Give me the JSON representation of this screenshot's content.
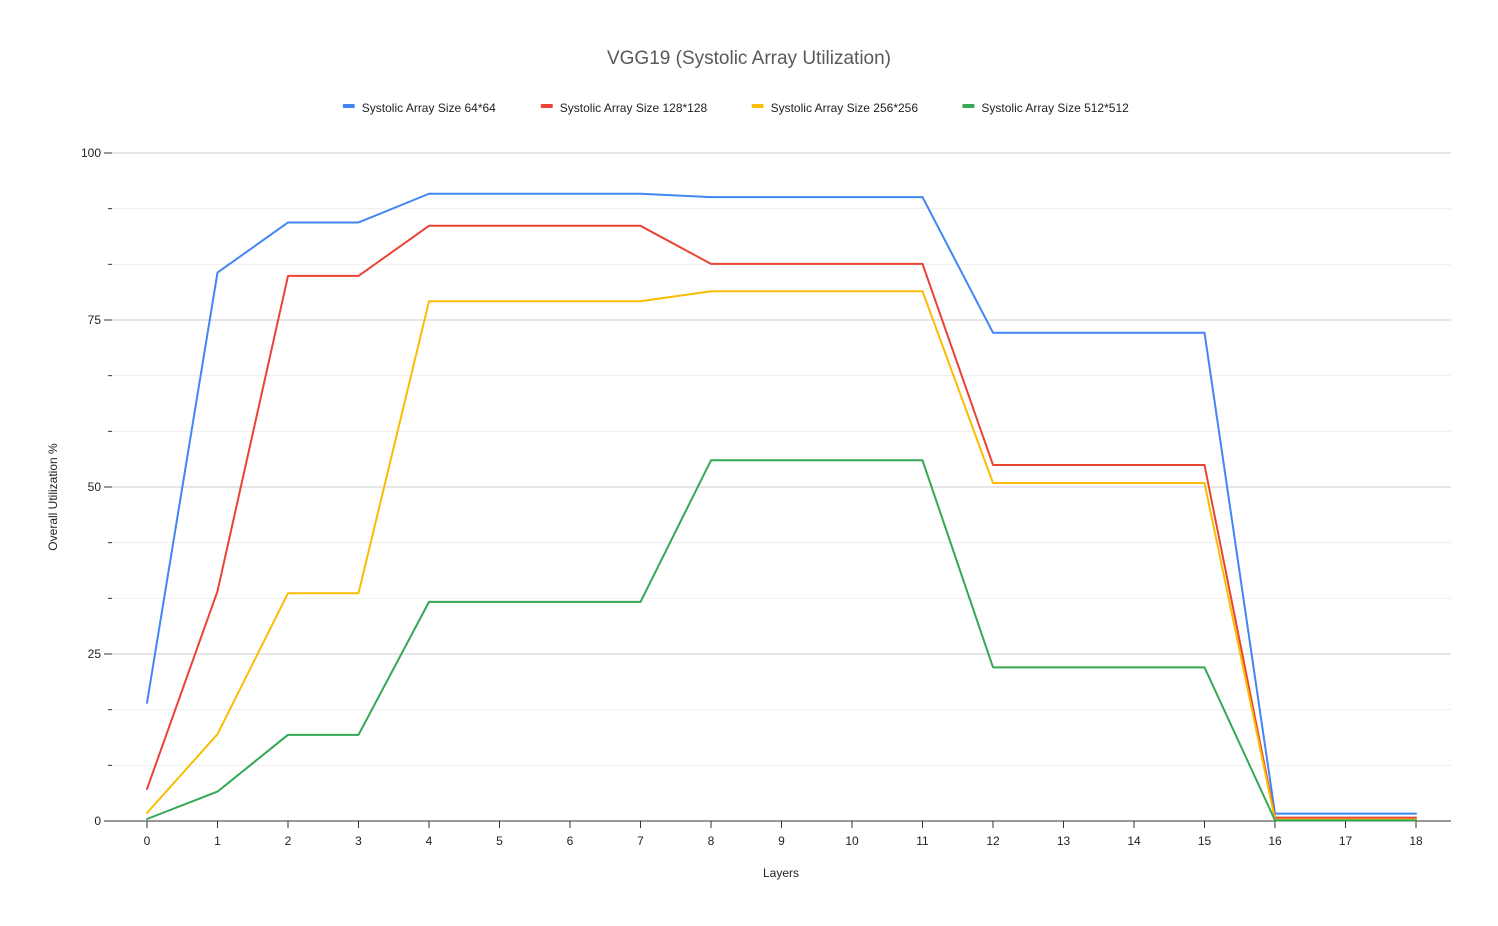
{
  "chart_data": {
    "type": "line",
    "title": "VGG19 (Systolic Array Utilization)",
    "xlabel": "Layers",
    "ylabel": "Overall Utilization %",
    "x": [
      0,
      1,
      2,
      3,
      4,
      5,
      6,
      7,
      8,
      9,
      10,
      11,
      12,
      13,
      14,
      15,
      16,
      17,
      18
    ],
    "ylim": [
      0,
      100
    ],
    "yticks": [
      0,
      25,
      50,
      75,
      100
    ],
    "grid": true,
    "legend_position": "top",
    "series": [
      {
        "name": "Systolic Array Size 64*64",
        "color": "#4285f4",
        "values": [
          17.7,
          82.1,
          89.6,
          89.6,
          93.9,
          93.9,
          93.9,
          93.9,
          93.4,
          93.4,
          93.4,
          93.4,
          73.1,
          73.1,
          73.1,
          73.1,
          1.1,
          1.1,
          1.1
        ]
      },
      {
        "name": "Systolic Array Size 128*128",
        "color": "#ea4335",
        "values": [
          4.8,
          34.4,
          81.6,
          81.6,
          89.1,
          89.1,
          89.1,
          89.1,
          83.4,
          83.4,
          83.4,
          83.4,
          53.3,
          53.3,
          53.3,
          53.3,
          0.5,
          0.5,
          0.5
        ]
      },
      {
        "name": "Systolic Array Size 256*256",
        "color": "#fbbc04",
        "values": [
          1.2,
          13.0,
          34.1,
          34.1,
          77.8,
          77.8,
          77.8,
          77.8,
          79.3,
          79.3,
          79.3,
          79.3,
          50.6,
          50.6,
          50.6,
          50.6,
          0.2,
          0.2,
          0.2
        ]
      },
      {
        "name": "Systolic Array Size 512*512",
        "color": "#34a853",
        "values": [
          0.3,
          4.4,
          12.9,
          12.9,
          32.8,
          32.8,
          32.8,
          32.8,
          54.0,
          54.0,
          54.0,
          54.0,
          23.0,
          23.0,
          23.0,
          23.0,
          0.1,
          0.1,
          0.1
        ]
      }
    ]
  }
}
